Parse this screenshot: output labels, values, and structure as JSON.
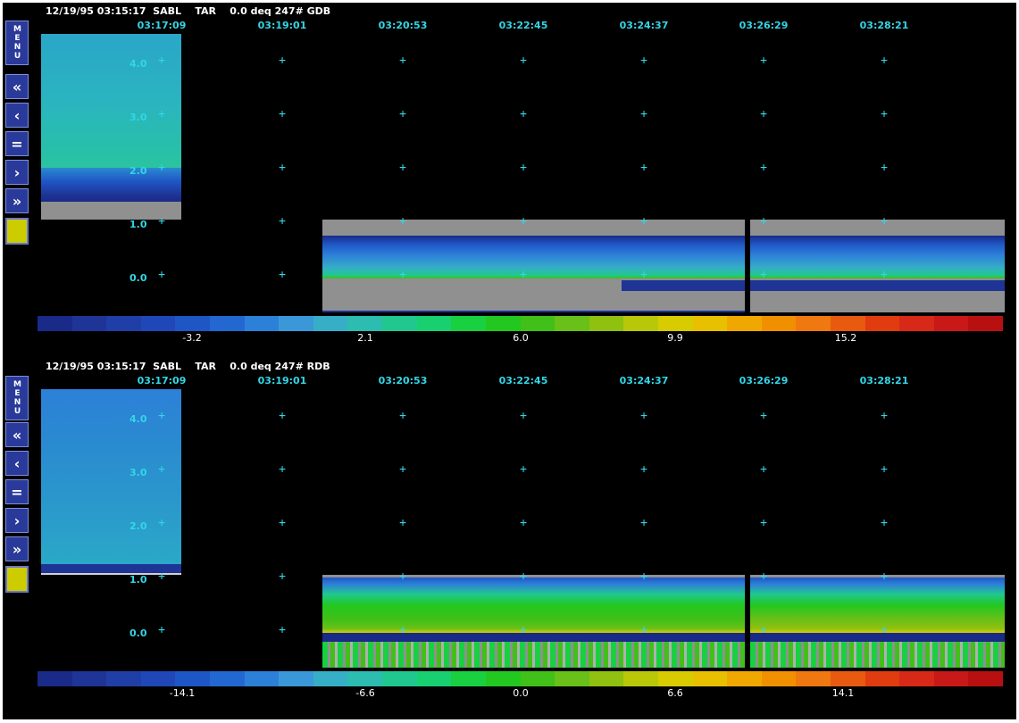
{
  "panels": [
    {
      "header": "12/19/95 03:15:17  SABL    TAR    0.0 deq 247# GDB",
      "times": [
        "03:17:09",
        "03:19:01",
        "03:20:53",
        "03:22:45",
        "03:24:37",
        "03:26:29",
        "03:28:21"
      ],
      "yticks": [
        "4.0",
        "3.0",
        "2.0",
        "1.0",
        "0.0"
      ],
      "colorbar_labels": [
        "-3.2",
        "2.1",
        "6.0",
        "9.9",
        "15.2"
      ],
      "buttons": {
        "menu": "MENU",
        "rewind": "«",
        "back": "‹",
        "pause": "=",
        "forward": "›",
        "fastforward": "»"
      }
    },
    {
      "header": "12/19/95 03:15:17  SABL    TAR    0.0 deq 247# RDB",
      "times": [
        "03:17:09",
        "03:19:01",
        "03:20:53",
        "03:22:45",
        "03:24:37",
        "03:26:29",
        "03:28:21"
      ],
      "yticks": [
        "4.0",
        "3.0",
        "2.0",
        "1.0",
        "0.0"
      ],
      "colorbar_labels": [
        "-14.1",
        "-6.6",
        "0.0",
        "6.6",
        "14.1"
      ],
      "buttons": {
        "menu": "MENU",
        "rewind": "«",
        "back": "‹",
        "pause": "=",
        "forward": "›",
        "fastforward": "»"
      }
    }
  ],
  "colors": {
    "accent": "#33d6e6",
    "button_blue": "#2a3a9a",
    "button_yellow": "#cccc00",
    "palette": [
      "#1a2a88",
      "#1e3496",
      "#1f3fa6",
      "#2047b8",
      "#1f56c6",
      "#2268d0",
      "#2d80d8",
      "#3a98d8",
      "#36aec6",
      "#2cbcb0",
      "#20c890",
      "#18d070",
      "#18d040",
      "#22c820",
      "#40c018",
      "#68c018",
      "#90c010",
      "#b8c808",
      "#d8cc00",
      "#e8c000",
      "#f0a800",
      "#f09000",
      "#ef7810",
      "#e85a10",
      "#e03c10",
      "#d82818",
      "#c81818",
      "#b81010"
    ]
  }
}
